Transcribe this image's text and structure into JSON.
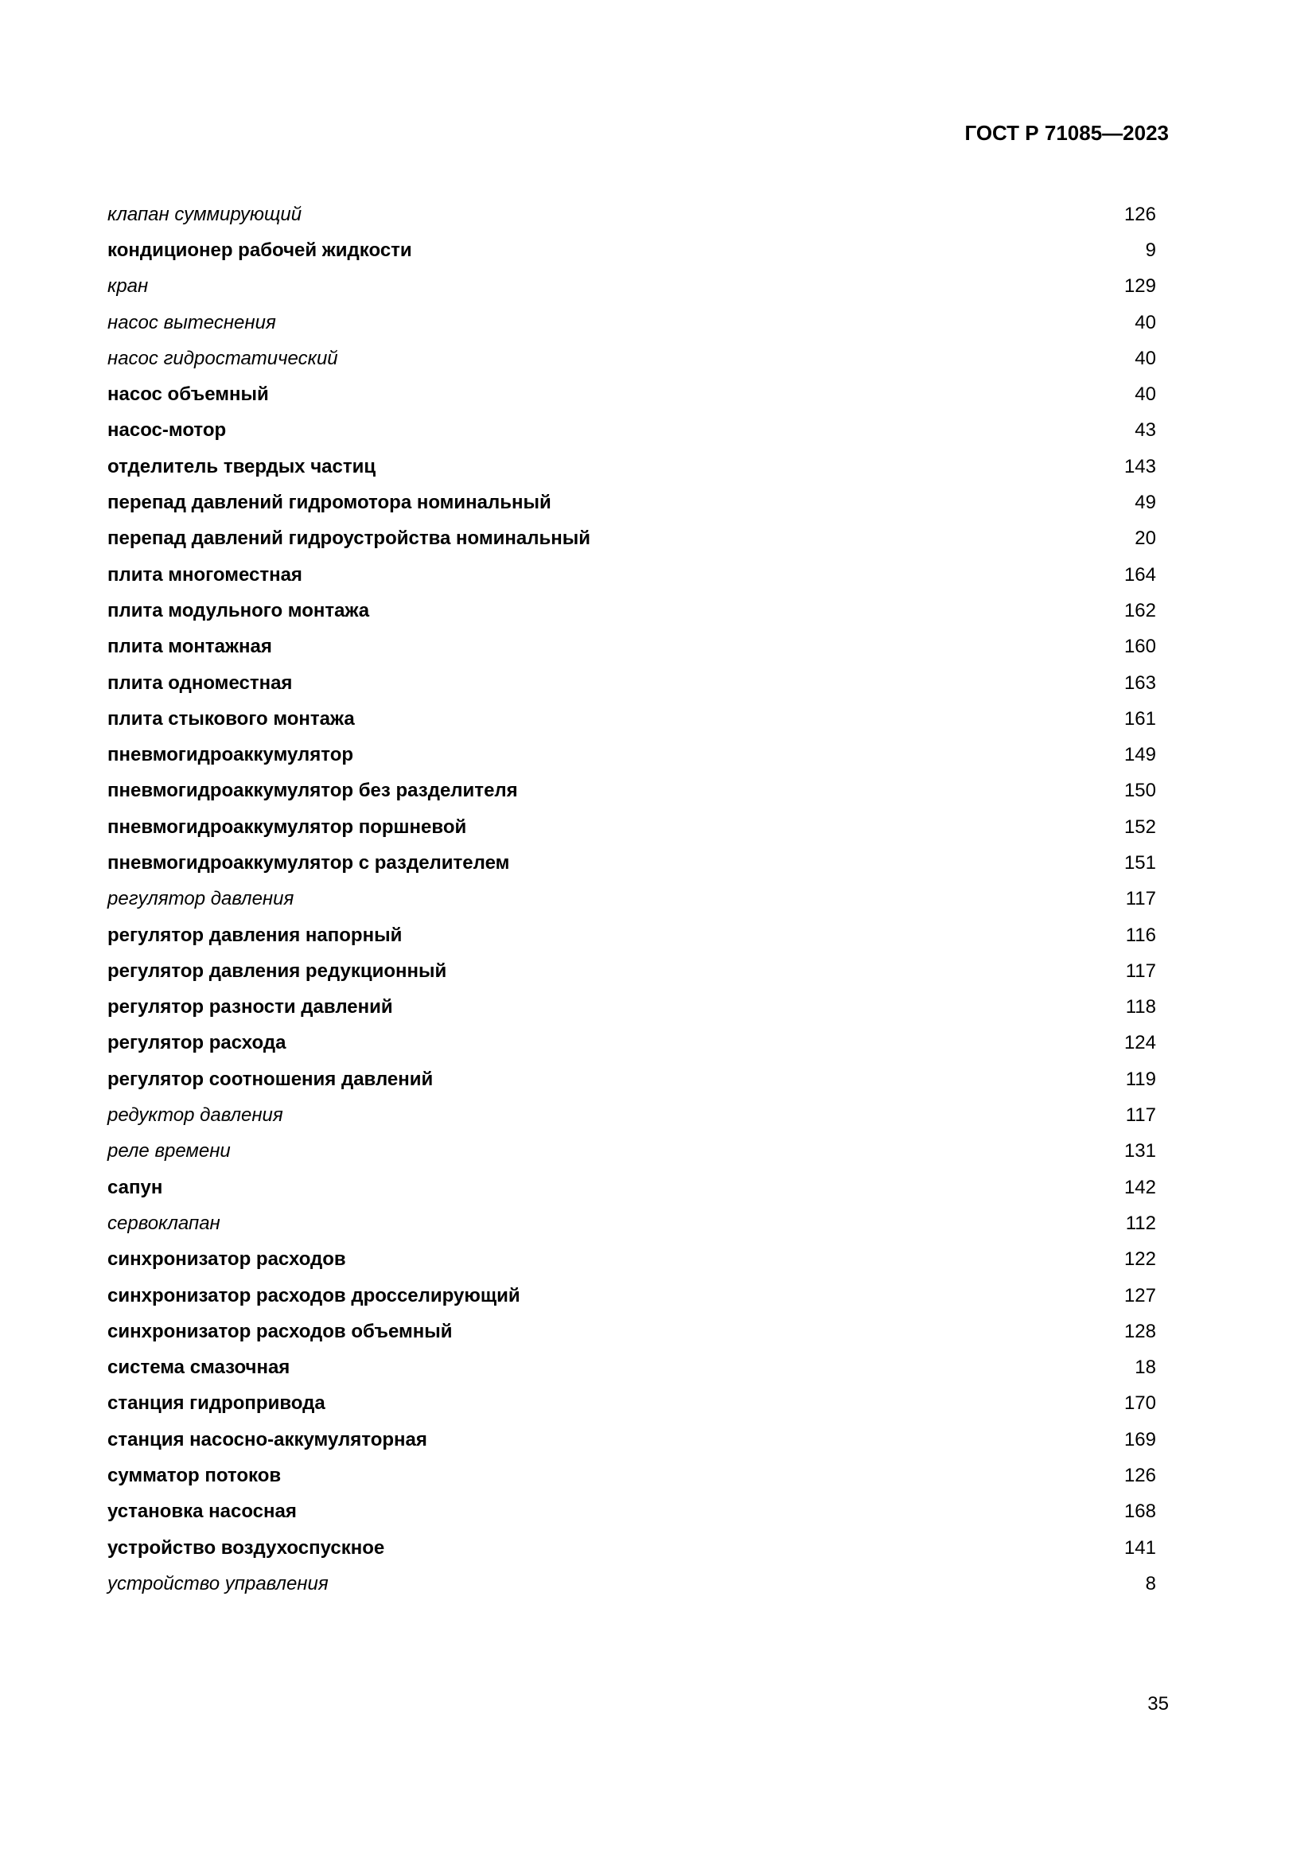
{
  "header": {
    "doc_id": "ГОСТ Р 71085—2023"
  },
  "entries": [
    {
      "term": "клапан суммирующий",
      "page": "126",
      "style": "italic"
    },
    {
      "term": "кондиционер рабочей жидкости",
      "page": "9",
      "style": "bold"
    },
    {
      "term": "кран",
      "page": "129",
      "style": "italic"
    },
    {
      "term": "насос вытеснения",
      "page": "40",
      "style": "italic"
    },
    {
      "term": "насос гидростатический",
      "page": "40",
      "style": "italic"
    },
    {
      "term": "насос объемный",
      "page": "40",
      "style": "bold"
    },
    {
      "term": "насос-мотор",
      "page": "43",
      "style": "bold"
    },
    {
      "term": "отделитель твердых частиц",
      "page": "143",
      "style": "bold"
    },
    {
      "term": "перепад давлений гидромотора номинальный",
      "page": "49",
      "style": "bold"
    },
    {
      "term": "перепад давлений гидроустройства номинальный",
      "page": "20",
      "style": "bold"
    },
    {
      "term": "плита многоместная",
      "page": "164",
      "style": "bold"
    },
    {
      "term": "плита модульного монтажа",
      "page": "162",
      "style": "bold"
    },
    {
      "term": "плита монтажная",
      "page": "160",
      "style": "bold"
    },
    {
      "term": "плита одноместная",
      "page": "163",
      "style": "bold"
    },
    {
      "term": "плита стыкового монтажа",
      "page": "161",
      "style": "bold"
    },
    {
      "term": "пневмогидроаккумулятор",
      "page": "149",
      "style": "bold"
    },
    {
      "term": "пневмогидроаккумулятор без разделителя",
      "page": "150",
      "style": "bold"
    },
    {
      "term": "пневмогидроаккумулятор поршневой",
      "page": "152",
      "style": "bold"
    },
    {
      "term": "пневмогидроаккумулятор с разделителем",
      "page": "151",
      "style": "bold"
    },
    {
      "term": "регулятор давления",
      "page": "117",
      "style": "italic"
    },
    {
      "term": "регулятор давления напорный",
      "page": "116",
      "style": "bold"
    },
    {
      "term": "регулятор давления редукционный",
      "page": "117",
      "style": "bold"
    },
    {
      "term": "регулятор разности давлений",
      "page": "118",
      "style": "bold"
    },
    {
      "term": "регулятор расхода",
      "page": "124",
      "style": "bold"
    },
    {
      "term": "регулятор соотношения давлений",
      "page": "119",
      "style": "bold"
    },
    {
      "term": "редуктор давления",
      "page": "117",
      "style": "italic"
    },
    {
      "term": "реле времени",
      "page": "131",
      "style": "italic"
    },
    {
      "term": "сапун",
      "page": "142",
      "style": "bold"
    },
    {
      "term": "сервоклапан",
      "page": "112",
      "style": "italic"
    },
    {
      "term": "синхронизатор расходов",
      "page": "122",
      "style": "bold"
    },
    {
      "term": "синхронизатор расходов дросселирующий",
      "page": "127",
      "style": "bold"
    },
    {
      "term": "синхронизатор расходов объемный",
      "page": "128",
      "style": "bold"
    },
    {
      "term": "система смазочная",
      "page": "18",
      "style": "bold"
    },
    {
      "term": "станция гидропривода",
      "page": "170",
      "style": "bold"
    },
    {
      "term": "станция насосно-аккумуляторная",
      "page": "169",
      "style": "bold"
    },
    {
      "term": "сумматор потоков",
      "page": "126",
      "style": "bold"
    },
    {
      "term": "установка насосная",
      "page": "168",
      "style": "bold"
    },
    {
      "term": "устройство воздухоспускное",
      "page": "141",
      "style": "bold"
    },
    {
      "term": "устройство управления",
      "page": "8",
      "style": "italic"
    }
  ],
  "footer": {
    "page_number": "35"
  }
}
